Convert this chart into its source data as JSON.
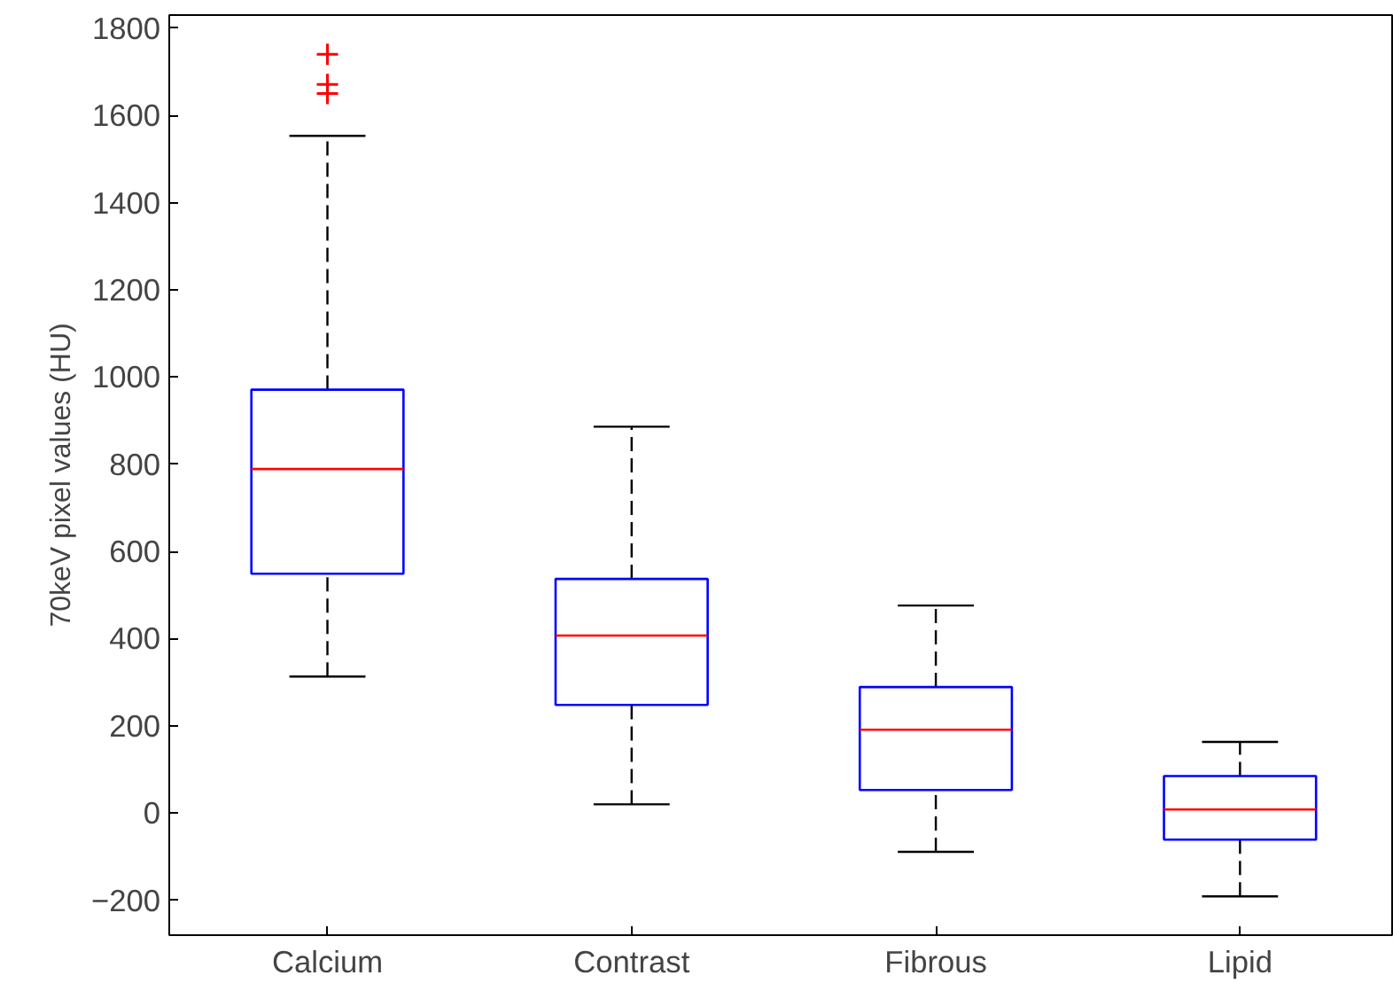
{
  "chart_data": {
    "type": "box",
    "ylabel": "70keV pixel values (HU)",
    "categories": [
      "Calcium",
      "Contrast",
      "Fibrous",
      "Lipid"
    ],
    "series": [
      {
        "color": "#0000ff",
        "boxes": [
          {
            "low": 313,
            "q1": 549,
            "median": 789,
            "q3": 971,
            "high": 1553,
            "outliers": [
              1740,
              1671,
              1650
            ]
          },
          {
            "low": 20,
            "q1": 248,
            "median": 407,
            "q3": 537,
            "high": 886
          },
          {
            "low": -89,
            "q1": 53,
            "median": 191,
            "q3": 289,
            "high": 476
          },
          {
            "low": -191,
            "q1": -61,
            "median": 8,
            "q3": 85,
            "high": 163
          }
        ]
      }
    ],
    "ylim": [
      -280,
      1830
    ],
    "yticks": [
      -200,
      0,
      200,
      400,
      600,
      800,
      1000,
      1200,
      1400,
      1600,
      1800
    ],
    "grid": false,
    "marker": "cross",
    "line_style": "dashed"
  }
}
